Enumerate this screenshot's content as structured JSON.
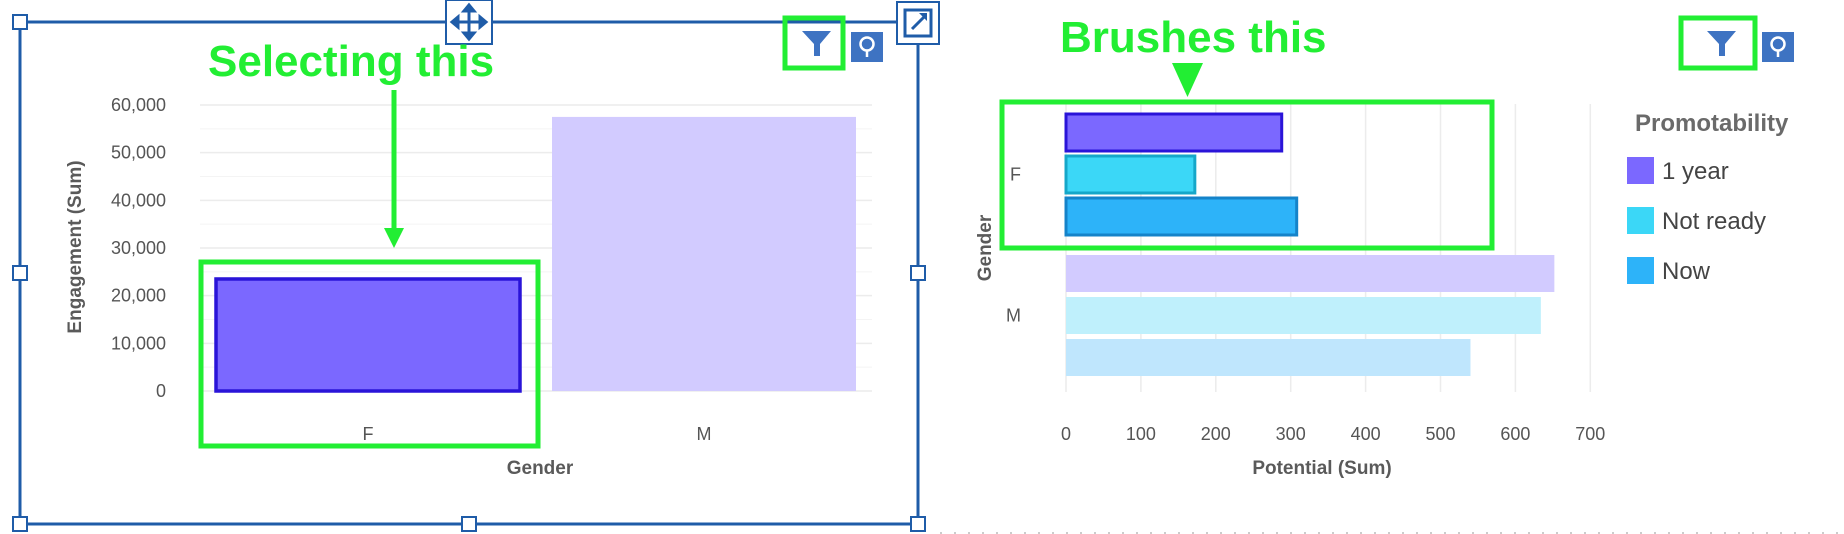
{
  "annotations": {
    "select_text": "Selecting this",
    "brush_text": "Brushes this"
  },
  "colors": {
    "one_year": "#7b68ff",
    "not_ready": "#3bd7f7",
    "now": "#2db3f9",
    "one_year_dim": "#d2cbff",
    "not_ready_dim": "#bff0fc",
    "now_dim": "#bfe6fd",
    "highlight": "#22ee33",
    "frame": "#1f5ca8",
    "icon_bg": "#3e73c2"
  },
  "icons": {
    "filter": "filter-icon",
    "bulb": "lightbulb-icon",
    "move": "move-icon",
    "expand": "expand-icon"
  },
  "chart_data": [
    {
      "type": "bar",
      "orientation": "vertical",
      "categories": [
        "F",
        "M"
      ],
      "values": [
        23500,
        57500
      ],
      "selected": [
        "F"
      ],
      "xlabel": "Gender",
      "ylabel": "Engagement (Sum)",
      "ylim": [
        0,
        60000
      ],
      "yticks": [
        "0",
        "10,000",
        "20,000",
        "30,000",
        "40,000",
        "50,000",
        "60,000"
      ],
      "grid": true
    },
    {
      "type": "bar",
      "orientation": "horizontal",
      "categories": [
        "F",
        "M"
      ],
      "series": [
        {
          "name": "1 year",
          "values": [
            288,
            652
          ]
        },
        {
          "name": "Not ready",
          "values": [
            172,
            634
          ]
        },
        {
          "name": "Now",
          "values": [
            308,
            540
          ]
        }
      ],
      "brushed": [
        "F"
      ],
      "xlabel": "Potential (Sum)",
      "ylabel": "Gender",
      "xlim": [
        0,
        700
      ],
      "xticks": [
        "0",
        "100",
        "200",
        "300",
        "400",
        "500",
        "600",
        "700"
      ],
      "legend_title": "Promotability",
      "legend_position": "right",
      "grid": true
    }
  ]
}
